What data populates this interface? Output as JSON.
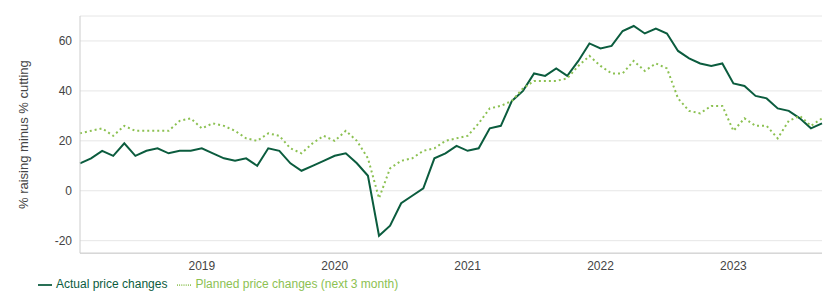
{
  "chart_data": {
    "type": "line",
    "y_label": "% raising minus % cutting",
    "categories": [
      null,
      null,
      null,
      null,
      null,
      null,
      null,
      null,
      null,
      null,
      null,
      "2019",
      null,
      null,
      null,
      null,
      null,
      null,
      null,
      null,
      null,
      null,
      null,
      "2020",
      null,
      null,
      null,
      null,
      null,
      null,
      null,
      null,
      null,
      null,
      null,
      "2021",
      null,
      null,
      null,
      null,
      null,
      null,
      null,
      null,
      null,
      null,
      null,
      "2022",
      null,
      null,
      null,
      null,
      null,
      null,
      null,
      null,
      null,
      null,
      null,
      "2023",
      null,
      null,
      null,
      null,
      null,
      null,
      null,
      null
    ],
    "series": [
      {
        "name": "Actual price changes",
        "color": "#0b5c3e",
        "line_style": "solid",
        "values": [
          11,
          13,
          16,
          14,
          19,
          14,
          16,
          17,
          15,
          16,
          16,
          17,
          15,
          13,
          12,
          13,
          10,
          17,
          16,
          11,
          8,
          10,
          12,
          14,
          15,
          11,
          6,
          -18,
          -14,
          -5,
          -2,
          1,
          13,
          15,
          18,
          16,
          17,
          25,
          26,
          36,
          40,
          47,
          46,
          49,
          46,
          52,
          59,
          57,
          58,
          64,
          66,
          63,
          65,
          63,
          56,
          53,
          51,
          50,
          51,
          43,
          42,
          38,
          37,
          33,
          32,
          29,
          25,
          27
        ]
      },
      {
        "name": "Planned price changes (next 3 month)",
        "color": "#8cc152",
        "line_style": "dotted",
        "values": [
          23,
          24,
          25,
          22,
          26,
          24,
          24,
          24,
          24,
          28,
          29,
          25,
          27,
          26,
          24,
          21,
          20,
          23,
          22,
          17,
          15,
          19,
          22,
          20,
          24,
          20,
          13,
          -3,
          9,
          12,
          13,
          16,
          17,
          20,
          21,
          22,
          27,
          33,
          34,
          36,
          41,
          44,
          44,
          44,
          45,
          50,
          54,
          50,
          47,
          47,
          52,
          48,
          51,
          49,
          37,
          32,
          31,
          34,
          34,
          24,
          29,
          26,
          26,
          21,
          28,
          30,
          26,
          29
        ]
      }
    ],
    "ylim": [
      -25,
      70
    ],
    "yticks": [
      -20,
      0,
      20,
      40,
      60
    ],
    "grid": true,
    "legend": "bottom-left"
  }
}
